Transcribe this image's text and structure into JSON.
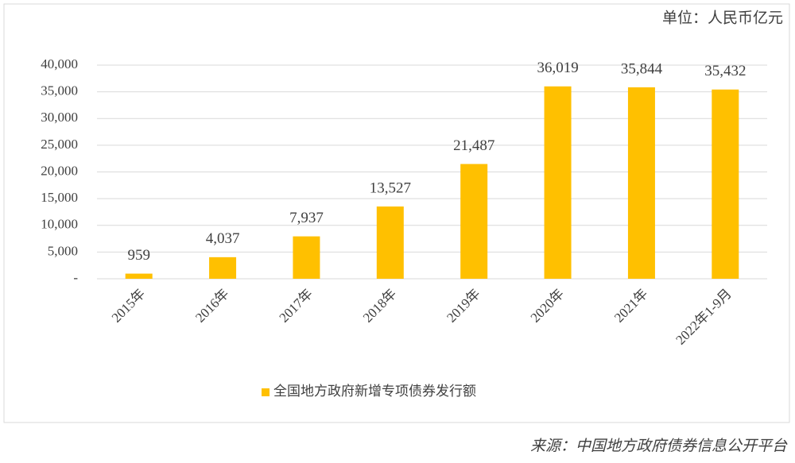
{
  "chart_data": {
    "type": "bar",
    "unit": "单位：人民币亿元",
    "source": "来源：中国地方政府债券信息公开平台",
    "categories": [
      "2015年",
      "2016年",
      "2017年",
      "2018年",
      "2019年",
      "2020年",
      "2021年",
      "2022年1-9月"
    ],
    "series": [
      {
        "name": "全国地方政府新增专项债券发行额",
        "color": "#ffc000",
        "values": [
          959,
          4037,
          7937,
          13527,
          21487,
          36019,
          35844,
          35432
        ],
        "value_labels": [
          "959",
          "4,037",
          "7,937",
          "13,527",
          "21,487",
          "36,019",
          "35,844",
          "35,432"
        ]
      }
    ],
    "ylim": [
      0,
      40000
    ],
    "yticks": [
      {
        "value": 0,
        "label": "-"
      },
      {
        "value": 5000,
        "label": "5,000"
      },
      {
        "value": 10000,
        "label": "10,000"
      },
      {
        "value": 15000,
        "label": "15,000"
      },
      {
        "value": 20000,
        "label": "20,000"
      },
      {
        "value": 25000,
        "label": "25,000"
      },
      {
        "value": 30000,
        "label": "30,000"
      },
      {
        "value": 35000,
        "label": "35,000"
      },
      {
        "value": 40000,
        "label": "40,000"
      }
    ],
    "grid": true,
    "legend": "bottom"
  }
}
